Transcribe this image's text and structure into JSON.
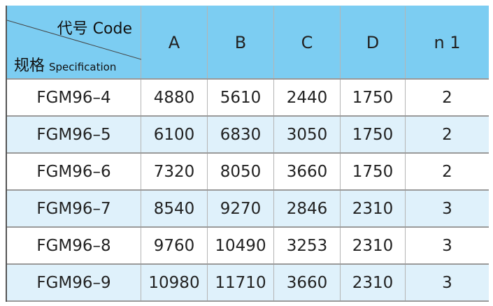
{
  "header": {
    "code": "代号 Code",
    "spec_cn": "规格",
    "spec_en": "Specification",
    "columns": [
      "A",
      "B",
      "C",
      "D",
      "n 1"
    ]
  },
  "rows": [
    [
      "FGM96–4",
      "4880",
      "5610",
      "2440",
      "1750",
      "2"
    ],
    [
      "FGM96–5",
      "6100",
      "6830",
      "3050",
      "1750",
      "2"
    ],
    [
      "FGM96–6",
      "7320",
      "8050",
      "3660",
      "1750",
      "2"
    ],
    [
      "FGM96–7",
      "8540",
      "9270",
      "2846",
      "2310",
      "3"
    ],
    [
      "FGM96–8",
      "9760",
      "10490",
      "3253",
      "2310",
      "3"
    ],
    [
      "FGM96–9",
      "10980",
      "11710",
      "3660",
      "2310",
      "3"
    ]
  ]
}
